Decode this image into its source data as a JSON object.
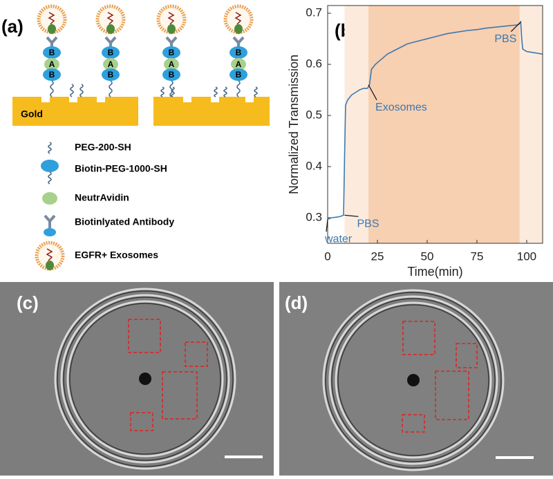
{
  "panel_labels": [
    "(a)",
    "(b)",
    "(c)",
    "(d)"
  ],
  "substrate_label": "Gold",
  "legend": [
    "PEG-200-SH",
    "Biotin-PEG-1000-SH",
    "NeutrAvidin",
    "Biotinlyated Antibody",
    "EGFR+ Exosomes"
  ],
  "molecule_letters": {
    "biotin": "B",
    "avidin": "A"
  },
  "chart_data": {
    "type": "line",
    "xlabel": "Time(min)",
    "ylabel": "Normalized Transmission",
    "x": [
      0,
      2,
      4,
      6,
      8,
      8.5,
      9,
      10,
      12,
      14,
      16,
      18,
      20,
      21,
      22,
      24,
      27,
      30,
      35,
      40,
      45,
      50,
      55,
      60,
      65,
      70,
      75,
      80,
      85,
      90,
      95,
      96,
      97,
      97.5,
      98,
      100,
      105,
      108
    ],
    "values": [
      0.297,
      0.3,
      0.301,
      0.302,
      0.305,
      0.42,
      0.52,
      0.53,
      0.54,
      0.545,
      0.55,
      0.553,
      0.553,
      0.56,
      0.59,
      0.6,
      0.61,
      0.62,
      0.63,
      0.64,
      0.645,
      0.65,
      0.655,
      0.66,
      0.663,
      0.666,
      0.668,
      0.671,
      0.673,
      0.675,
      0.677,
      0.678,
      0.683,
      0.65,
      0.63,
      0.625,
      0.622,
      0.62
    ],
    "color": "#3a78b0",
    "xlim": [
      0,
      108
    ],
    "ylim": [
      0.25,
      0.715
    ],
    "xticks": [
      0,
      25,
      50,
      75,
      100
    ],
    "yticks": [
      0.3,
      0.4,
      0.5,
      0.6,
      0.7
    ],
    "regions": [
      {
        "x": [
          8.5,
          20.5
        ],
        "color": "#fcebdd"
      },
      {
        "x": [
          20.5,
          96.5
        ],
        "color": "#f7cfb1"
      },
      {
        "x": [
          96.5,
          108
        ],
        "color": "#fcebdd"
      }
    ],
    "annotations": [
      {
        "text": "water",
        "x": 0,
        "y": 0.297
      },
      {
        "text": "PBS",
        "x": 8.5,
        "y": 0.305
      },
      {
        "text": "Exosomes",
        "x": 20.5,
        "y": 0.56
      },
      {
        "text": "PBS",
        "x": 97,
        "y": 0.683
      }
    ]
  }
}
